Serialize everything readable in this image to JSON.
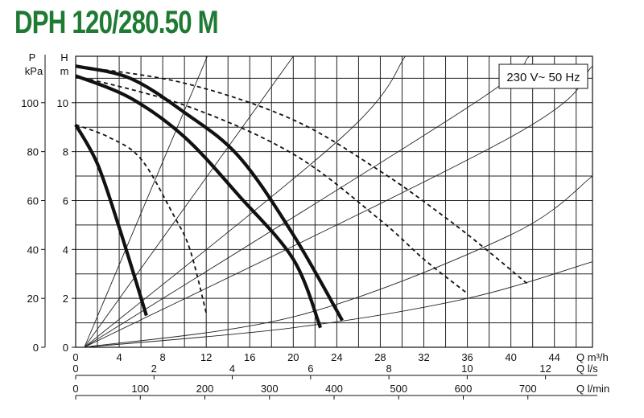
{
  "title": "DPH 120/280.50 M",
  "chart_data": {
    "type": "line",
    "annotation": "230 V~ 50 Hz",
    "grid": true,
    "x_axes": [
      {
        "unit_label": "Q m³/h",
        "range": [
          0,
          47.5
        ],
        "ticks": [
          0,
          4,
          8,
          12,
          16,
          20,
          24,
          28,
          32,
          36,
          40,
          44
        ]
      },
      {
        "unit_label": "Q l/s",
        "range": [
          0,
          13.2
        ],
        "ticks": [
          0,
          2,
          4,
          6,
          8,
          10,
          12
        ]
      },
      {
        "unit_label": "Q l/min",
        "range": [
          0,
          800
        ],
        "ticks": [
          0,
          100,
          200,
          300,
          400,
          500,
          600,
          700
        ]
      }
    ],
    "y_axes": [
      {
        "name": "H",
        "unit": "m",
        "range": [
          0,
          11.9
        ],
        "ticks": [
          0,
          2,
          4,
          6,
          8,
          10
        ]
      },
      {
        "name": "P",
        "unit": "kPa",
        "range": [
          0,
          119
        ],
        "ticks": [
          0,
          20,
          40,
          60,
          80,
          100
        ]
      }
    ],
    "series": [
      {
        "style": "solid",
        "points": [
          [
            0,
            9.1
          ],
          [
            2,
            7.5
          ],
          [
            4,
            4.9
          ],
          [
            6.5,
            1.3
          ]
        ]
      },
      {
        "style": "dashed",
        "points": [
          [
            0,
            9.1
          ],
          [
            3,
            8.6
          ],
          [
            6,
            7.7
          ],
          [
            9,
            5.4
          ],
          [
            10.5,
            4.0
          ],
          [
            12,
            1.4
          ]
        ]
      },
      {
        "style": "solid",
        "points": [
          [
            0,
            11.1
          ],
          [
            5,
            10.2
          ],
          [
            10,
            8.6
          ],
          [
            15,
            6.2
          ],
          [
            20,
            3.6
          ],
          [
            22.5,
            0.8
          ]
        ]
      },
      {
        "style": "dashed",
        "points": [
          [
            0,
            11.1
          ],
          [
            10,
            9.9
          ],
          [
            20,
            7.9
          ],
          [
            28,
            5.2
          ],
          [
            32,
            3.6
          ],
          [
            36,
            2.2
          ]
        ]
      },
      {
        "style": "solid",
        "points": [
          [
            0,
            11.5
          ],
          [
            5,
            11.0
          ],
          [
            10,
            9.6
          ],
          [
            15,
            7.8
          ],
          [
            20,
            4.6
          ],
          [
            24.5,
            1.1
          ]
        ]
      },
      {
        "style": "dashed",
        "points": [
          [
            0,
            11.5
          ],
          [
            10,
            10.8
          ],
          [
            20,
            9.3
          ],
          [
            28,
            7.2
          ],
          [
            34,
            5.3
          ],
          [
            38,
            3.9
          ],
          [
            41.5,
            2.6
          ]
        ]
      }
    ],
    "system_curves": [
      {
        "points": [
          [
            0.8,
            0
          ],
          [
            12.1,
            11.9
          ]
        ]
      },
      {
        "points": [
          [
            0.8,
            0
          ],
          [
            20,
            11.9
          ]
        ]
      },
      {
        "points": [
          [
            0.8,
            0
          ],
          [
            24.5,
            8.6
          ],
          [
            30.3,
            11.9
          ]
        ]
      },
      {
        "points": [
          [
            0.8,
            0
          ],
          [
            36,
            9.8
          ],
          [
            41.7,
            11.9
          ]
        ]
      },
      {
        "points": [
          [
            0.8,
            0
          ],
          [
            40,
            8.6
          ],
          [
            47.5,
            11.5
          ]
        ]
      },
      {
        "points": [
          [
            0.8,
            0
          ],
          [
            20.5,
            1.3
          ],
          [
            40,
            4.6
          ],
          [
            47.5,
            7.0
          ]
        ]
      },
      {
        "points": [
          [
            0.8,
            0
          ],
          [
            20,
            0.8
          ],
          [
            36,
            2.0
          ],
          [
            47.5,
            3.5
          ]
        ]
      }
    ]
  }
}
